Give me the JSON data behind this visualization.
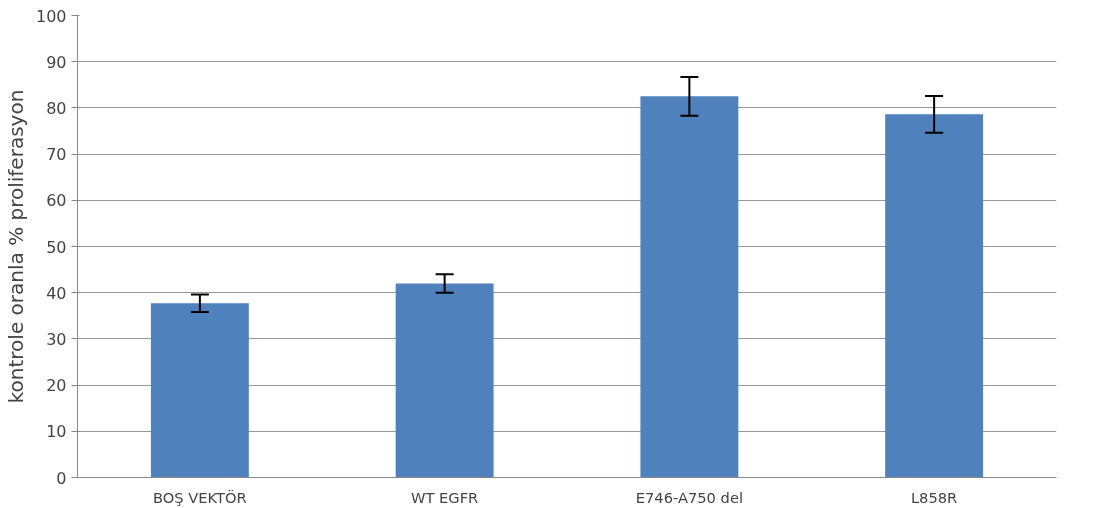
{
  "chart_data": {
    "type": "bar",
    "ylabel": "kontrole oranla % proliferasyon",
    "categories": [
      "BOŞ VEKTÖR",
      "WT EGFR",
      "E746-A750 del",
      "L858R"
    ],
    "values": [
      37.7,
      42.0,
      82.5,
      78.6
    ],
    "errors": [
      1.9,
      2.0,
      4.2,
      4.0
    ],
    "color": "#4f81bd",
    "ylim": [
      0,
      100
    ],
    "yticks": [
      0,
      10,
      20,
      30,
      40,
      50,
      60,
      70,
      80,
      90,
      100
    ],
    "grid": "y"
  }
}
